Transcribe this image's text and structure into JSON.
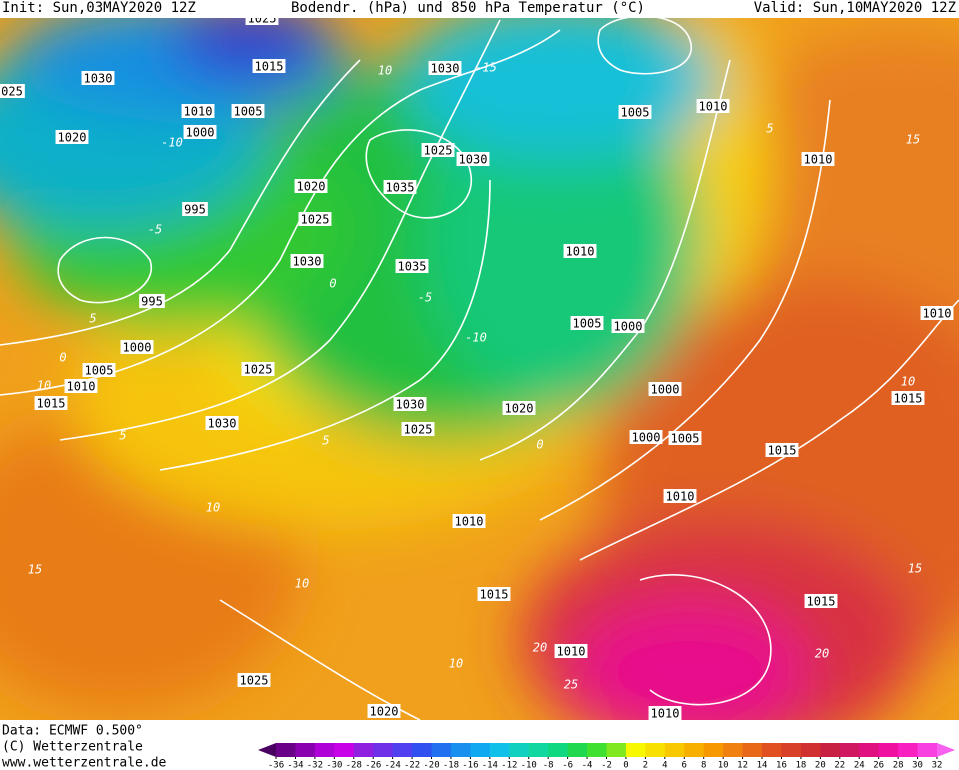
{
  "header": {
    "init": "Init: Sun,03MAY2020 12Z",
    "title": "Bodendr. (hPa) und 850 hPa Temperatur (°C)",
    "valid": "Valid: Sun,10MAY2020 12Z"
  },
  "map": {
    "pressure_labels": [
      "1025",
      "1015",
      "1030",
      "025",
      "1030",
      "1010",
      "1005",
      "1000",
      "1020",
      "1005",
      "1010",
      "1025",
      "1030",
      "1010",
      "1020",
      "1035",
      "995",
      "1025",
      "1010",
      "1030",
      "1035",
      "995",
      "1005",
      "1000",
      "1010",
      "1000",
      "1025",
      "1005",
      "1010",
      "1015",
      "1000",
      "1015",
      "1030",
      "1020",
      "1030",
      "1025",
      "1000",
      "1005",
      "1015",
      "1010",
      "1010",
      "1015",
      "1015",
      "1010",
      "1025",
      "1020",
      "1010"
    ],
    "temperature_labels": [
      "-15",
      "10",
      "-10",
      "5",
      "15",
      "-5",
      "0",
      "-5",
      "-10",
      "5",
      "0",
      "10",
      "10",
      "5",
      "5",
      "0",
      "10",
      "15",
      "10",
      "15",
      "10",
      "20",
      "20",
      "25"
    ]
  },
  "footer": {
    "data": "Data: ECMWF  0.500°",
    "copyright": "(C) Wetterzentrale",
    "url": "www.wetterzentrale.de"
  },
  "colorbar": {
    "ticks": [
      -36,
      -34,
      -32,
      -30,
      -28,
      -26,
      -24,
      -22,
      -20,
      -18,
      -16,
      -14,
      -12,
      -10,
      -8,
      -6,
      -4,
      -2,
      0,
      2,
      4,
      6,
      8,
      10,
      12,
      14,
      16,
      18,
      20,
      22,
      24,
      26,
      28,
      30,
      32
    ]
  }
}
